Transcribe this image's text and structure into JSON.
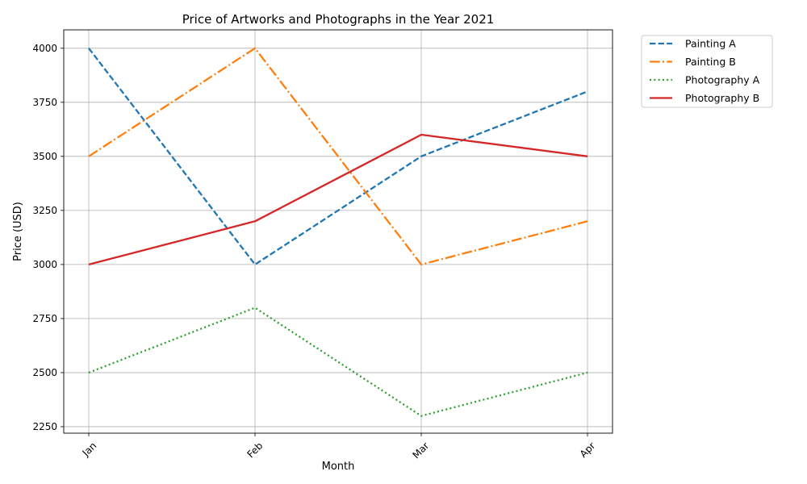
{
  "chart_data": {
    "type": "line",
    "title": "Price of Artworks and Photographs in the Year 2021",
    "xlabel": "Month",
    "ylabel": "Price (USD)",
    "categories": [
      "Jan",
      "Feb",
      "Mar",
      "Apr"
    ],
    "ylim": [
      2220,
      4085
    ],
    "yticks": [
      2250,
      2500,
      2750,
      3000,
      3250,
      3500,
      3750,
      4000
    ],
    "grid": true,
    "legend_position": "outside-top-right",
    "series": [
      {
        "name": "Painting A",
        "values": [
          4000,
          3000,
          3500,
          3800
        ],
        "color": "#1f77b4",
        "style": "dashed"
      },
      {
        "name": "Painting B",
        "values": [
          3500,
          4000,
          3000,
          3200
        ],
        "color": "#ff7f0e",
        "style": "dashdot"
      },
      {
        "name": "Photography A",
        "values": [
          2500,
          2800,
          2300,
          2500
        ],
        "color": "#2ca02c",
        "style": "dotted"
      },
      {
        "name": "Photography B",
        "values": [
          3000,
          3200,
          3600,
          3500
        ],
        "color": "#d62728",
        "style": "solid"
      }
    ]
  }
}
